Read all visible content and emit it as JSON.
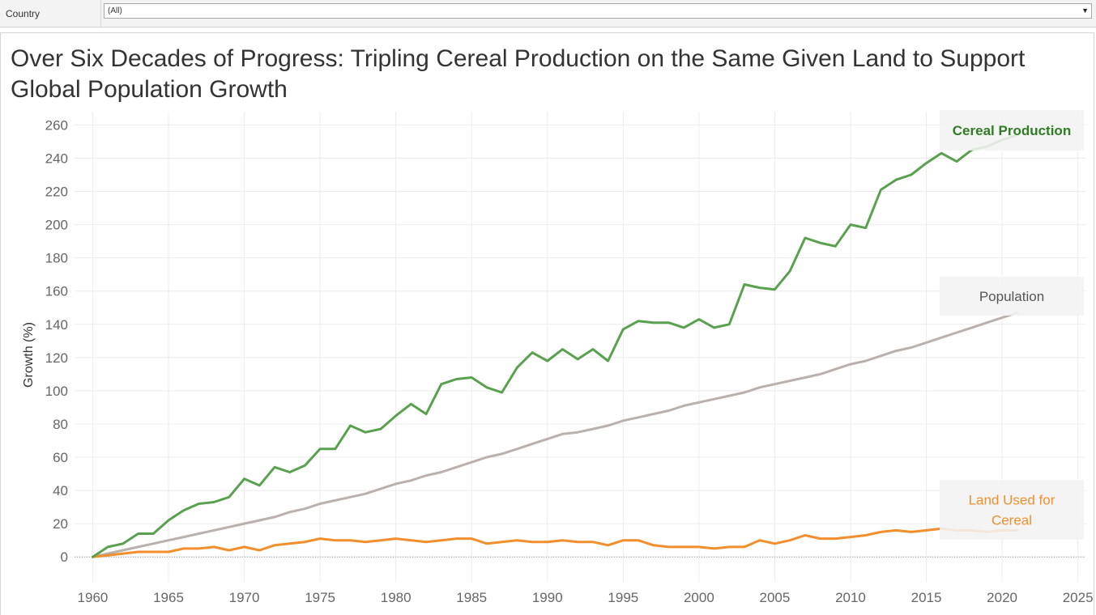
{
  "filter": {
    "label": "Country",
    "value": "(All)"
  },
  "colors": {
    "cereal": "#59a14f",
    "population": "#bab0ac",
    "land": "#f28e2b",
    "cereal_label": "#2e7d22",
    "population_label": "#555555",
    "land_label": "#f28e2b",
    "grid": "#ebebeb",
    "tick": "#666666"
  },
  "chart_data": {
    "type": "line",
    "title": "Over Six Decades of Progress: Tripling Cereal Production on the Same Given Land to Support Global Population Growth",
    "ylabel": "Growth (%)",
    "xlabel": "",
    "xlim": [
      1958.8,
      2025.5
    ],
    "ylim": [
      -15,
      268
    ],
    "x_ticks": [
      1960,
      1965,
      1970,
      1975,
      1980,
      1985,
      1990,
      1995,
      2000,
      2005,
      2010,
      2015,
      2020,
      2025
    ],
    "y_ticks": [
      0,
      20,
      40,
      60,
      80,
      100,
      120,
      140,
      160,
      180,
      200,
      220,
      240,
      260
    ],
    "grid": true,
    "zero_line": "dotted",
    "series": [
      {
        "name": "Cereal Production",
        "label_lines": [
          "Cereal Production"
        ],
        "color_key": "cereal",
        "label_color_key": "cereal_label",
        "label_bold": true,
        "x": [
          1960,
          1961,
          1962,
          1963,
          1964,
          1965,
          1966,
          1967,
          1968,
          1969,
          1970,
          1971,
          1972,
          1973,
          1974,
          1975,
          1976,
          1977,
          1978,
          1979,
          1980,
          1981,
          1982,
          1983,
          1984,
          1985,
          1986,
          1987,
          1988,
          1989,
          1990,
          1991,
          1992,
          1993,
          1994,
          1995,
          1996,
          1997,
          1998,
          1999,
          2000,
          2001,
          2002,
          2003,
          2004,
          2005,
          2006,
          2007,
          2008,
          2009,
          2010,
          2011,
          2012,
          2013,
          2014,
          2015,
          2016,
          2017,
          2018,
          2019,
          2020,
          2021
        ],
        "values": [
          0,
          6,
          8,
          14,
          14,
          22,
          28,
          32,
          33,
          36,
          47,
          43,
          54,
          51,
          55,
          65,
          65,
          79,
          75,
          77,
          85,
          92,
          86,
          104,
          107,
          108,
          102,
          99,
          114,
          123,
          118,
          125,
          119,
          125,
          118,
          137,
          142,
          141,
          141,
          138,
          143,
          138,
          140,
          164,
          162,
          161,
          172,
          192,
          189,
          187,
          200,
          198,
          221,
          227,
          230,
          237,
          243,
          238,
          245,
          247,
          251,
          254
        ]
      },
      {
        "name": "Population",
        "label_lines": [
          "Population"
        ],
        "color_key": "population",
        "label_color_key": "population_label",
        "label_bold": false,
        "x": [
          1960,
          1961,
          1962,
          1963,
          1964,
          1965,
          1966,
          1967,
          1968,
          1969,
          1970,
          1971,
          1972,
          1973,
          1974,
          1975,
          1976,
          1977,
          1978,
          1979,
          1980,
          1981,
          1982,
          1983,
          1984,
          1985,
          1986,
          1987,
          1988,
          1989,
          1990,
          1991,
          1992,
          1993,
          1994,
          1995,
          1996,
          1997,
          1998,
          1999,
          2000,
          2001,
          2002,
          2003,
          2004,
          2005,
          2006,
          2007,
          2008,
          2009,
          2010,
          2011,
          2012,
          2013,
          2014,
          2015,
          2016,
          2017,
          2018,
          2019,
          2020,
          2021
        ],
        "values": [
          0,
          2,
          4,
          6,
          8,
          10,
          12,
          14,
          16,
          18,
          20,
          22,
          24,
          27,
          29,
          32,
          34,
          36,
          38,
          41,
          44,
          46,
          49,
          51,
          54,
          57,
          60,
          62,
          65,
          68,
          71,
          74,
          75,
          77,
          79,
          82,
          84,
          86,
          88,
          91,
          93,
          95,
          97,
          99,
          102,
          104,
          106,
          108,
          110,
          113,
          116,
          118,
          121,
          124,
          126,
          129,
          132,
          135,
          138,
          141,
          144,
          147
        ]
      },
      {
        "name": "Land Used for Cereal",
        "label_lines": [
          "Land Used for",
          "Cereal"
        ],
        "color_key": "land",
        "label_color_key": "land_label",
        "label_bold": false,
        "x": [
          1960,
          1961,
          1962,
          1963,
          1964,
          1965,
          1966,
          1967,
          1968,
          1969,
          1970,
          1971,
          1972,
          1973,
          1974,
          1975,
          1976,
          1977,
          1978,
          1979,
          1980,
          1981,
          1982,
          1983,
          1984,
          1985,
          1986,
          1987,
          1988,
          1989,
          1990,
          1991,
          1992,
          1993,
          1994,
          1995,
          1996,
          1997,
          1998,
          1999,
          2000,
          2001,
          2002,
          2003,
          2004,
          2005,
          2006,
          2007,
          2008,
          2009,
          2010,
          2011,
          2012,
          2013,
          2014,
          2015,
          2016,
          2017,
          2018,
          2019,
          2020,
          2021
        ],
        "values": [
          0,
          1,
          2,
          3,
          3,
          3,
          5,
          5,
          6,
          4,
          6,
          4,
          7,
          8,
          9,
          11,
          10,
          10,
          9,
          10,
          11,
          10,
          9,
          10,
          11,
          11,
          8,
          9,
          10,
          9,
          9,
          10,
          9,
          9,
          7,
          10,
          10,
          7,
          6,
          6,
          6,
          5,
          6,
          6,
          10,
          8,
          10,
          13,
          11,
          11,
          12,
          13,
          15,
          16,
          15,
          16,
          17,
          16,
          16,
          15,
          16,
          16
        ]
      }
    ]
  }
}
